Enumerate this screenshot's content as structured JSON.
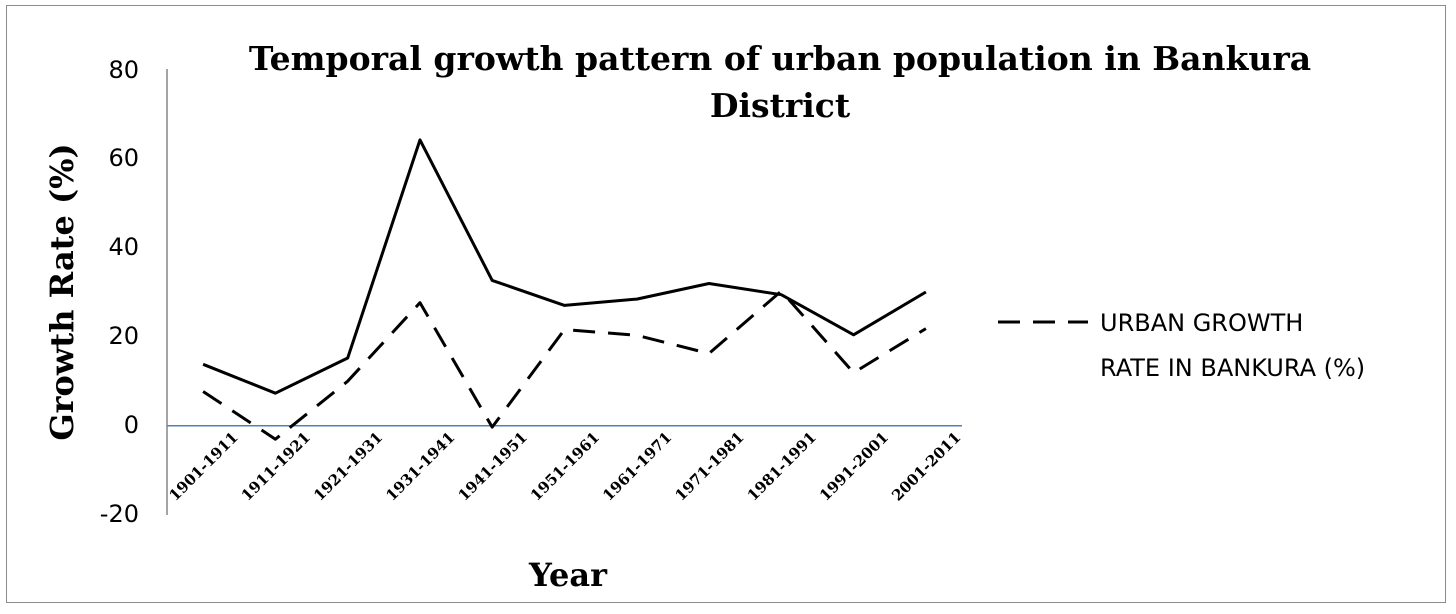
{
  "chart_data": {
    "type": "line",
    "title_lines": [
      "Temporal growth pattern of urban population in Bankura",
      "District"
    ],
    "xlabel": "Year",
    "ylabel": "Growth Rate (%)",
    "ylim": [
      -20,
      80
    ],
    "yticks": [
      "80",
      "60",
      "40",
      "20",
      "0",
      "-20"
    ],
    "categories": [
      "1901-1911",
      "1911-1921",
      "1921-1931",
      "1931-1941",
      "1941-1951",
      "1951-1961",
      "1961-1971",
      "1971-1981",
      "1981-1991",
      "1991-2001",
      "2001-2011"
    ],
    "series": [
      {
        "name": "",
        "style": "solid",
        "color": "#000000",
        "values": [
          13.8,
          7.3,
          15.2,
          64.1,
          32.6,
          27.0,
          28.4,
          31.9,
          29.4,
          20.4,
          30.0
        ]
      },
      {
        "name_lines": [
          "URBAN GROWTH",
          "RATE IN BANKURA (%)"
        ],
        "style": "dashed",
        "color": "#000000",
        "values": [
          7.7,
          -3.0,
          10.0,
          27.6,
          -0.3,
          21.6,
          20.3,
          16.2,
          30.2,
          11.9,
          21.8
        ]
      }
    ],
    "zero_line_color": "#4f81bd",
    "grid": false,
    "legend_position": "right"
  }
}
